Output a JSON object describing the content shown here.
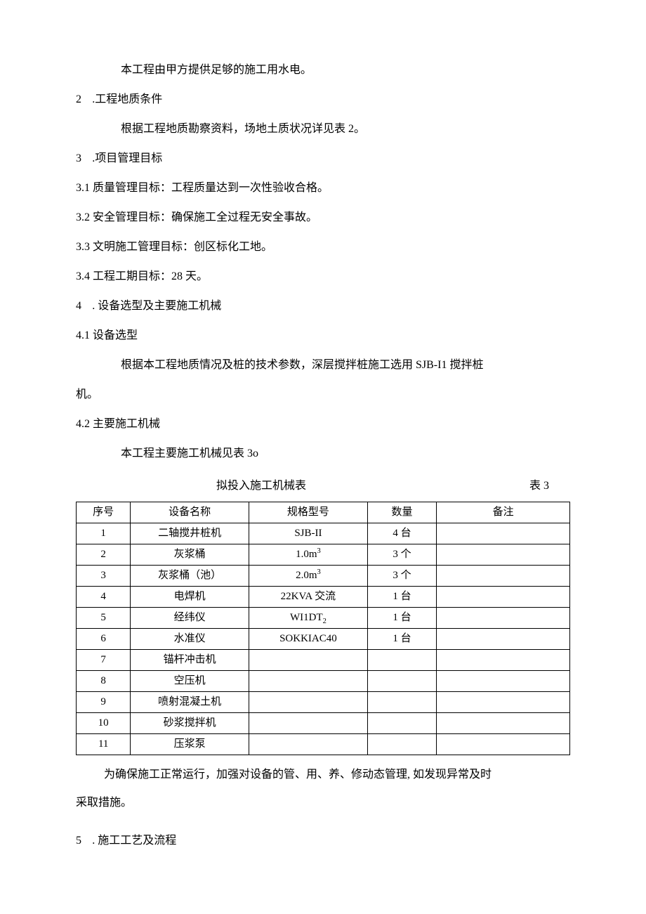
{
  "p_intro": "本工程由甲方提供足够的施工用水电。",
  "s2_heading_num": "2",
  "s2_heading_text": " .工程地质条件",
  "s2_p1": "根据工程地质勘察资料，场地土质状况详见表 2。",
  "s3_heading_num": "3",
  "s3_heading_text": " .项目管理目标",
  "s3_1_num": "3.1",
  "s3_1_text": "  质量管理目标：工程质量达到一次性验收合格。",
  "s3_2_num": "3.2",
  "s3_2_text": "  安全管理目标：确保施工全过程无安全事故。",
  "s3_3_num": "3.3",
  "s3_3_text": "  文明施工管理目标：创区标化工地。",
  "s3_4_num": "3.4",
  "s3_4_text": "  工程工期目标：28 天。",
  "s4_heading_num": "4",
  "s4_heading_text": "  . 设备选型及主要施工机械",
  "s4_1_num": "4.1",
  "s4_1_text": "  设备选型",
  "s4_1_p1": "根据本工程地质情况及桩的技术参数，深层搅拌桩施工选用 SJB-I1 搅拌桩",
  "s4_1_p2": "机。",
  "s4_2_num": "4.2",
  "s4_2_text": "  主要施工机械",
  "s4_2_p1": "本工程主要施工机械见表 3o",
  "table_title": "拟投入施工机械表",
  "table_label": "表 3",
  "table": {
    "headers": [
      "序号",
      "设备名称",
      "规格型号",
      "数量",
      "备注"
    ],
    "rows": [
      {
        "seq": "1",
        "name": "二轴搅井桩机",
        "spec": "SJB-II",
        "qty": "4 台",
        "note": ""
      },
      {
        "seq": "2",
        "name": "灰浆桶",
        "spec_html": "1.0m<sup>3</sup>",
        "qty": "3 个",
        "note": ""
      },
      {
        "seq": "3",
        "name": "灰浆桶（池）",
        "spec_html": "2.0m<sup>3</sup>",
        "qty": "3 个",
        "note": ""
      },
      {
        "seq": "4",
        "name": "电焊机",
        "spec": "22KVA 交流",
        "qty": "1 台",
        "note": ""
      },
      {
        "seq": "5",
        "name": "经纬仪",
        "spec_html": "WI1DT<sub>2</sub>",
        "qty": "1 台",
        "note": ""
      },
      {
        "seq": "6",
        "name": "水准仪",
        "spec": "SOKKIAC40",
        "qty": "1 台",
        "note": ""
      },
      {
        "seq": "7",
        "name": "锚杆冲击机",
        "spec": "",
        "qty": "",
        "note": ""
      },
      {
        "seq": "8",
        "name": "空压机",
        "spec": "",
        "qty": "",
        "note": ""
      },
      {
        "seq": "9",
        "name": "喷射混凝土机",
        "spec": "",
        "qty": "",
        "note": ""
      },
      {
        "seq": "10",
        "name": "砂浆搅拌机",
        "spec": "",
        "qty": "",
        "note": ""
      },
      {
        "seq": "11",
        "name": "压浆泵",
        "spec": "",
        "qty": "",
        "note": ""
      }
    ]
  },
  "after_table_p1": "为确保施工正常运行，加强对设备的管、用、养、修动态管理, 如发现异常及时",
  "after_table_p2": "采取措施。",
  "s5_heading_num": "5",
  "s5_heading_text": "  . 施工工艺及流程"
}
